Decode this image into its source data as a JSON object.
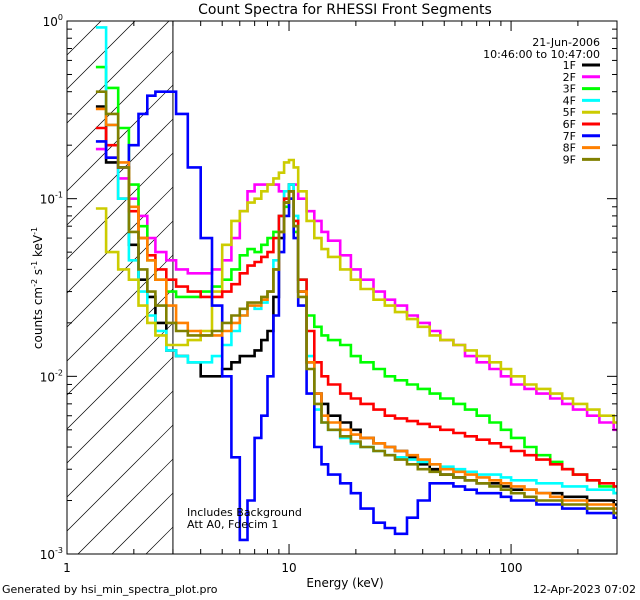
{
  "chart_data": {
    "type": "line",
    "title": "Count Spectra for RHESSI Front Segments",
    "xlabel": "Energy (keV)",
    "ylabel_main": "counts cm",
    "ylabel_sup1": "-2",
    "ylabel_mid": " s",
    "ylabel_sup2": "-1",
    "ylabel_end": " keV",
    "ylabel_sup3": "-1",
    "xscale": "log",
    "yscale": "log",
    "xlim": [
      1,
      300
    ],
    "ylim": [
      0.001,
      1
    ],
    "x_ticks": [
      {
        "v": 1,
        "label": "1"
      },
      {
        "v": 10,
        "label": "10"
      },
      {
        "v": 100,
        "label": "100"
      }
    ],
    "y_ticks": [
      {
        "v": 1,
        "base": "10",
        "exp": "0"
      },
      {
        "v": 0.1,
        "base": "10",
        "exp": "-1"
      },
      {
        "v": 0.01,
        "base": "10",
        "exp": "-2"
      },
      {
        "v": 0.001,
        "base": "10",
        "exp": "-3"
      }
    ],
    "date": "21-Jun-2006",
    "time_range": "10:46:00 to 10:47:00",
    "annotation_line1": "Includes Background",
    "annotation_line2": "Att A0, Fdecim 1",
    "hatched_region": [
      1,
      3
    ],
    "series": [
      {
        "name": "1F",
        "color": "#000000",
        "x": [
          1.35,
          1.5,
          1.7,
          1.9,
          2.1,
          2.3,
          2.5,
          2.8,
          3.1,
          3.5,
          4,
          4.5,
          5,
          5.5,
          6,
          6.5,
          7,
          7.5,
          8,
          8.5,
          9,
          9.5,
          10,
          10.5,
          11,
          12,
          13,
          14,
          15,
          17,
          19,
          21,
          24,
          27,
          30,
          34,
          38,
          43,
          48,
          55,
          62,
          70,
          80,
          90,
          100,
          115,
          130,
          150,
          170,
          190,
          220,
          250,
          290
        ],
        "y": [
          0.33,
          0.16,
          0.1,
          0.055,
          0.035,
          0.028,
          0.02,
          0.014,
          0.013,
          0.012,
          0.01,
          0.01,
          0.011,
          0.012,
          0.013,
          0.013,
          0.014,
          0.016,
          0.018,
          0.028,
          0.06,
          0.095,
          0.12,
          0.07,
          0.03,
          0.012,
          0.008,
          0.007,
          0.006,
          0.0055,
          0.005,
          0.0045,
          0.0042,
          0.004,
          0.0038,
          0.0035,
          0.0032,
          0.003,
          0.0028,
          0.0027,
          0.0026,
          0.0025,
          0.0025,
          0.0024,
          0.0023,
          0.0023,
          0.0022,
          0.0022,
          0.0021,
          0.0021,
          0.002,
          0.002,
          0.0019
        ]
      },
      {
        "name": "2F",
        "color": "#ff00ff",
        "x": [
          1.35,
          1.5,
          1.7,
          1.9,
          2.1,
          2.3,
          2.5,
          2.8,
          3.1,
          3.5,
          4,
          4.5,
          5,
          5.5,
          6,
          6.5,
          7,
          7.5,
          8,
          8.5,
          9,
          9.5,
          10,
          10.5,
          11,
          12,
          13,
          14,
          15,
          17,
          19,
          21,
          24,
          27,
          30,
          34,
          38,
          43,
          48,
          55,
          62,
          70,
          80,
          90,
          100,
          115,
          130,
          150,
          170,
          190,
          220,
          250,
          290
        ],
        "y": [
          0.19,
          0.17,
          0.13,
          0.1,
          0.08,
          0.06,
          0.05,
          0.045,
          0.04,
          0.038,
          0.038,
          0.04,
          0.045,
          0.06,
          0.085,
          0.11,
          0.12,
          0.12,
          0.12,
          0.12,
          0.11,
          0.1,
          0.11,
          0.12,
          0.1,
          0.085,
          0.075,
          0.065,
          0.058,
          0.048,
          0.04,
          0.035,
          0.03,
          0.027,
          0.025,
          0.022,
          0.02,
          0.018,
          0.016,
          0.015,
          0.013,
          0.012,
          0.011,
          0.01,
          0.009,
          0.0085,
          0.008,
          0.0075,
          0.007,
          0.0065,
          0.006,
          0.0055,
          0.005
        ]
      },
      {
        "name": "3F",
        "color": "#00ff00",
        "x": [
          1.35,
          1.5,
          1.7,
          1.9,
          2.1,
          2.3,
          2.5,
          2.8,
          3.1,
          3.5,
          4,
          4.5,
          5,
          5.5,
          6,
          6.5,
          7,
          7.5,
          8,
          8.5,
          9,
          9.5,
          10,
          10.5,
          11,
          12,
          13,
          14,
          15,
          17,
          19,
          21,
          24,
          27,
          30,
          34,
          38,
          43,
          48,
          55,
          62,
          70,
          80,
          90,
          100,
          115,
          130,
          150,
          170,
          190,
          220,
          250,
          290
        ],
        "y": [
          0.55,
          0.42,
          0.25,
          0.12,
          0.07,
          0.045,
          0.035,
          0.03,
          0.028,
          0.028,
          0.03,
          0.032,
          0.035,
          0.04,
          0.048,
          0.052,
          0.05,
          0.055,
          0.06,
          0.065,
          0.08,
          0.09,
          0.1,
          0.065,
          0.035,
          0.022,
          0.019,
          0.017,
          0.016,
          0.015,
          0.013,
          0.012,
          0.011,
          0.01,
          0.0095,
          0.009,
          0.0085,
          0.008,
          0.0075,
          0.007,
          0.0065,
          0.006,
          0.0055,
          0.005,
          0.0045,
          0.004,
          0.0036,
          0.0033,
          0.003,
          0.0028,
          0.0026,
          0.0024,
          0.0022
        ]
      },
      {
        "name": "4F",
        "color": "#00ffff",
        "x": [
          1.35,
          1.5,
          1.7,
          1.9,
          2.1,
          2.3,
          2.5,
          2.8,
          3.1,
          3.5,
          4,
          4.5,
          5,
          5.5,
          6,
          6.5,
          7,
          7.5,
          8,
          8.5,
          9,
          9.5,
          10,
          10.5,
          11,
          12,
          13,
          14,
          15,
          17,
          19,
          21,
          24,
          27,
          30,
          34,
          38,
          43,
          48,
          55,
          62,
          70,
          80,
          90,
          100,
          115,
          130,
          150,
          170,
          190,
          220,
          250,
          290
        ],
        "y": [
          0.92,
          0.26,
          0.1,
          0.045,
          0.03,
          0.022,
          0.018,
          0.014,
          0.013,
          0.012,
          0.012,
          0.013,
          0.015,
          0.018,
          0.022,
          0.025,
          0.024,
          0.026,
          0.03,
          0.045,
          0.08,
          0.11,
          0.12,
          0.08,
          0.035,
          0.013,
          0.0065,
          0.0055,
          0.005,
          0.0045,
          0.0042,
          0.004,
          0.0038,
          0.0036,
          0.0035,
          0.0034,
          0.0033,
          0.0032,
          0.0031,
          0.003,
          0.0029,
          0.0028,
          0.0028,
          0.0027,
          0.0026,
          0.0026,
          0.0025,
          0.0025,
          0.0024,
          0.0024,
          0.0023,
          0.0023,
          0.0022
        ]
      },
      {
        "name": "5F",
        "color": "#cccc00",
        "x": [
          1.35,
          1.5,
          1.7,
          1.9,
          2.1,
          2.3,
          2.5,
          2.8,
          3.1,
          3.5,
          4,
          4.5,
          5,
          5.5,
          6,
          6.5,
          7,
          7.5,
          8,
          8.5,
          9,
          9.5,
          10,
          10.5,
          11,
          12,
          13,
          14,
          15,
          17,
          19,
          21,
          24,
          27,
          30,
          34,
          38,
          43,
          48,
          55,
          62,
          70,
          80,
          90,
          100,
          115,
          130,
          150,
          170,
          190,
          220,
          250,
          290
        ],
        "y": [
          0.088,
          0.05,
          0.04,
          0.035,
          0.025,
          0.02,
          0.017,
          0.015,
          0.015,
          0.016,
          0.018,
          0.03,
          0.055,
          0.075,
          0.085,
          0.095,
          0.1,
          0.11,
          0.12,
          0.13,
          0.14,
          0.16,
          0.165,
          0.15,
          0.11,
          0.075,
          0.06,
          0.052,
          0.047,
          0.04,
          0.035,
          0.031,
          0.027,
          0.025,
          0.023,
          0.021,
          0.019,
          0.017,
          0.016,
          0.015,
          0.014,
          0.013,
          0.012,
          0.011,
          0.01,
          0.009,
          0.0085,
          0.008,
          0.0075,
          0.007,
          0.0065,
          0.006,
          0.0055
        ]
      },
      {
        "name": "6F",
        "color": "#ff0000",
        "x": [
          1.35,
          1.5,
          1.7,
          1.9,
          2.1,
          2.3,
          2.5,
          2.8,
          3.1,
          3.5,
          4,
          4.5,
          5,
          5.5,
          6,
          6.5,
          7,
          7.5,
          8,
          8.5,
          9,
          9.5,
          10,
          10.5,
          11,
          12,
          13,
          14,
          15,
          17,
          19,
          21,
          24,
          27,
          30,
          34,
          38,
          43,
          48,
          55,
          62,
          70,
          80,
          90,
          100,
          115,
          130,
          150,
          170,
          190,
          220,
          250,
          290
        ],
        "y": [
          0.25,
          0.2,
          0.15,
          0.085,
          0.06,
          0.048,
          0.04,
          0.035,
          0.032,
          0.03,
          0.028,
          0.028,
          0.03,
          0.033,
          0.038,
          0.042,
          0.044,
          0.047,
          0.05,
          0.06,
          0.08,
          0.1,
          0.11,
          0.075,
          0.035,
          0.018,
          0.012,
          0.01,
          0.009,
          0.008,
          0.0075,
          0.007,
          0.0065,
          0.006,
          0.0058,
          0.0056,
          0.0054,
          0.0052,
          0.005,
          0.0048,
          0.0046,
          0.0044,
          0.0042,
          0.004,
          0.0038,
          0.0036,
          0.0034,
          0.0032,
          0.003,
          0.0028,
          0.0026,
          0.0025,
          0.0024
        ]
      },
      {
        "name": "7F",
        "color": "#0000ff",
        "x": [
          1.35,
          1.5,
          1.7,
          1.9,
          2.1,
          2.3,
          2.5,
          2.8,
          3.1,
          3.5,
          4,
          4.5,
          5,
          5.5,
          6,
          6.5,
          7,
          7.5,
          8,
          8.5,
          9,
          9.5,
          10,
          10.5,
          11,
          12,
          13,
          14,
          15,
          17,
          19,
          21,
          24,
          27,
          30,
          34,
          38,
          43,
          48,
          55,
          62,
          70,
          80,
          90,
          100,
          115,
          130,
          150,
          170,
          190,
          220,
          250,
          290
        ],
        "y": [
          0.21,
          0.17,
          0.15,
          0.2,
          0.3,
          0.38,
          0.4,
          0.4,
          0.3,
          0.15,
          0.06,
          0.025,
          0.01,
          0.0035,
          0.0012,
          0.002,
          0.0045,
          0.006,
          0.01,
          0.022,
          0.05,
          0.08,
          0.1,
          0.06,
          0.025,
          0.008,
          0.004,
          0.0032,
          0.0028,
          0.0025,
          0.0022,
          0.0018,
          0.0015,
          0.0014,
          0.0013,
          0.0016,
          0.002,
          0.0025,
          0.0025,
          0.0024,
          0.0023,
          0.0022,
          0.0022,
          0.0021,
          0.002,
          0.002,
          0.0019,
          0.0019,
          0.0018,
          0.0018,
          0.0017,
          0.0017,
          0.0016
        ]
      },
      {
        "name": "8F",
        "color": "#ff8000",
        "x": [
          1.35,
          1.5,
          1.7,
          1.9,
          2.1,
          2.3,
          2.5,
          2.8,
          3.1,
          3.5,
          4,
          4.5,
          5,
          5.5,
          6,
          6.5,
          7,
          7.5,
          8,
          8.5,
          9,
          9.5,
          10,
          10.5,
          11,
          12,
          13,
          14,
          15,
          17,
          19,
          21,
          24,
          27,
          30,
          34,
          38,
          43,
          48,
          55,
          62,
          70,
          80,
          90,
          100,
          115,
          130,
          150,
          170,
          190,
          220,
          250,
          290
        ],
        "y": [
          0.32,
          0.26,
          0.16,
          0.09,
          0.06,
          0.045,
          0.035,
          0.025,
          0.02,
          0.018,
          0.017,
          0.017,
          0.018,
          0.02,
          0.022,
          0.025,
          0.025,
          0.027,
          0.03,
          0.04,
          0.065,
          0.095,
          0.11,
          0.07,
          0.03,
          0.012,
          0.008,
          0.006,
          0.0055,
          0.005,
          0.0047,
          0.0045,
          0.0042,
          0.004,
          0.0038,
          0.0036,
          0.0034,
          0.0032,
          0.003,
          0.0029,
          0.0028,
          0.0027,
          0.0026,
          0.0025,
          0.0024,
          0.0023,
          0.0022,
          0.0021,
          0.002,
          0.002,
          0.0019,
          0.0019,
          0.0018
        ]
      },
      {
        "name": "9F",
        "color": "#808000",
        "x": [
          1.35,
          1.5,
          1.7,
          1.9,
          2.1,
          2.3,
          2.5,
          2.8,
          3.1,
          3.5,
          4,
          4.5,
          5,
          5.5,
          6,
          6.5,
          7,
          7.5,
          8,
          8.5,
          9,
          9.5,
          10,
          10.5,
          11,
          12,
          13,
          14,
          15,
          17,
          19,
          21,
          24,
          27,
          30,
          34,
          38,
          43,
          48,
          55,
          62,
          70,
          80,
          90,
          100,
          115,
          130,
          150,
          170,
          190,
          220,
          250,
          290
        ],
        "y": [
          0.4,
          0.3,
          0.15,
          0.065,
          0.04,
          0.03,
          0.025,
          0.02,
          0.018,
          0.017,
          0.017,
          0.018,
          0.02,
          0.022,
          0.024,
          0.026,
          0.026,
          0.028,
          0.03,
          0.04,
          0.065,
          0.095,
          0.11,
          0.07,
          0.028,
          0.011,
          0.007,
          0.0055,
          0.005,
          0.0046,
          0.0043,
          0.004,
          0.0038,
          0.0036,
          0.0034,
          0.0032,
          0.003,
          0.0029,
          0.0028,
          0.0027,
          0.0026,
          0.0025,
          0.0024,
          0.0023,
          0.0022,
          0.0021,
          0.002,
          0.002,
          0.0019,
          0.0019,
          0.0018,
          0.0018,
          0.0017
        ]
      }
    ]
  },
  "footer": {
    "generated_by": "Generated by hsi_min_spectra_plot.pro",
    "timestamp": "12-Apr-2023 07:02"
  }
}
